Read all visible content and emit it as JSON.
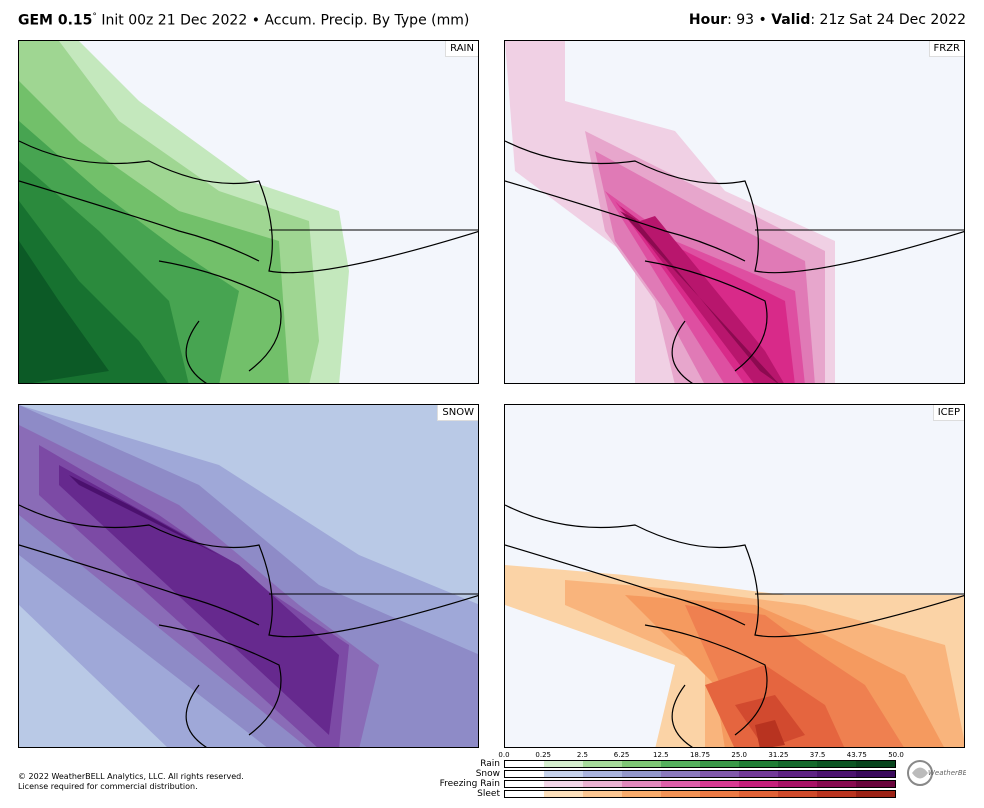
{
  "header": {
    "model": "GEM 0.15",
    "degree": "°",
    "init": "Init 00z 21 Dec 2022",
    "bullet": "•",
    "product": "Accum. Precip. By Type (mm)",
    "hour_label": "Hour",
    "hour_value": ": 93",
    "valid_label": "Valid",
    "valid_value": ": 21z Sat 24 Dec 2022"
  },
  "panels": [
    {
      "label": "RAIN",
      "colors": [
        "#c4e8bd",
        "#9fd692",
        "#72c06a",
        "#47a451",
        "#2b8a3d",
        "#177230",
        "#0c5a26"
      ]
    },
    {
      "label": "FRZR",
      "colors": [
        "#f0d0e4",
        "#e7a6cc",
        "#e07ab6",
        "#de4fa1",
        "#d82a89",
        "#b8166d",
        "#8c0a50"
      ]
    },
    {
      "label": "SNOW",
      "colors": [
        "#b9c9e6",
        "#9fa8d8",
        "#8e8bc7",
        "#8a6cb7",
        "#7c4aa5",
        "#66298e",
        "#4b116e"
      ]
    },
    {
      "label": "ICEP",
      "colors": [
        "#fbd3a6",
        "#f9b47c",
        "#f59a5f",
        "#ef8050",
        "#e5653f",
        "#d24a2f",
        "#b83320"
      ]
    }
  ],
  "legend": {
    "ticks": [
      "0.0",
      "0.25",
      "2.5",
      "6.25",
      "12.5",
      "18.75",
      "25.0",
      "31.25",
      "37.5",
      "43.75",
      "50.0"
    ],
    "rows": [
      {
        "name": "Rain",
        "colors": [
          "#ffffff",
          "#d6efcf",
          "#a7dc9b",
          "#7fc876",
          "#55b05d",
          "#3a9848",
          "#217e36",
          "#15692c",
          "#0d5624",
          "#08451d"
        ]
      },
      {
        "name": "Snow",
        "colors": [
          "#ffffff",
          "#c6d3ec",
          "#a9b4de",
          "#9398cc",
          "#8b7abd",
          "#8159ab",
          "#723a98",
          "#5f2484",
          "#4d1470",
          "#3a0a5c"
        ]
      },
      {
        "name": "Freezing Rain",
        "colors": [
          "#ffffff",
          "#f3d6e8",
          "#ebb2d2",
          "#e389bd",
          "#de5fa9",
          "#d83a92",
          "#c5207b",
          "#a81366",
          "#880b50",
          "#6a053d"
        ]
      },
      {
        "name": "Sleet",
        "colors": [
          "#ffffff",
          "#fde0bc",
          "#fbc692",
          "#f8ab6c",
          "#f39356",
          "#ec7a45",
          "#e16237",
          "#cf4a2b",
          "#b93420",
          "#9c2216"
        ]
      }
    ]
  },
  "footer": {
    "copyright": "© 2022 WeatherBELL Analytics, LLC. All rights reserved.",
    "license": "License required for commercial distribution.",
    "logo_text": "WeatherBELL"
  }
}
